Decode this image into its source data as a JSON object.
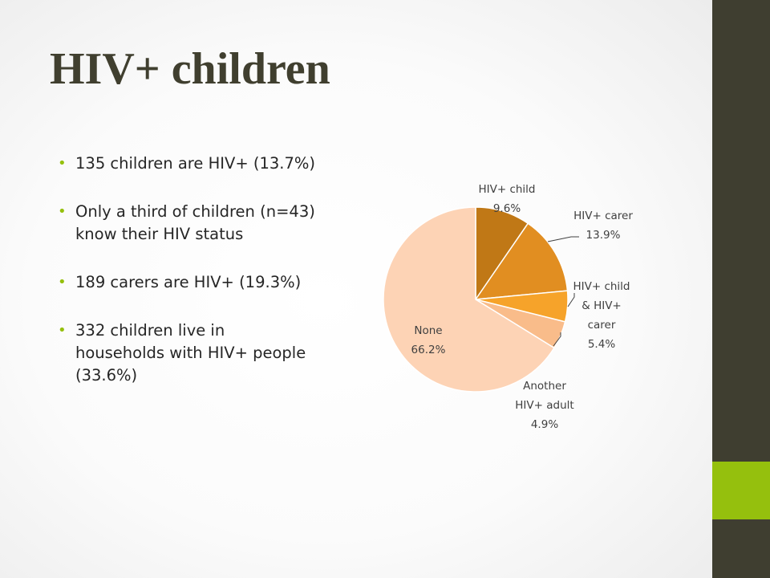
{
  "slide": {
    "title": "HIV+ children",
    "bullets": [
      {
        "lines": [
          "135 children are HIV+ (13.7%)"
        ]
      },
      {
        "lines": [
          "Only a third of children (n=43)",
          "know their HIV status"
        ]
      },
      {
        "lines": [
          "189 carers are HIV+ (19.3%)"
        ]
      },
      {
        "lines": [
          "332 children live in",
          "households with HIV+ people",
          "(33.6%)"
        ]
      }
    ],
    "colors": {
      "sidebar": "#3f3e30",
      "accent": "#95c00d",
      "title": "#403f2f"
    }
  },
  "chart_data": {
    "type": "pie",
    "start_angle_deg": 0,
    "direction": "clockwise",
    "slices": [
      {
        "label_lines": [
          "HIV+ child",
          "9.6%"
        ],
        "value": 9.6,
        "color": "#c07816"
      },
      {
        "label_lines": [
          "HIV+ carer",
          "13.9%"
        ],
        "value": 13.9,
        "color": "#e18e21"
      },
      {
        "label_lines": [
          "HIV+ child",
          "& HIV+",
          "carer",
          "5.4%"
        ],
        "value": 5.4,
        "color": "#f6a32a"
      },
      {
        "label_lines": [
          "Another",
          "HIV+ adult",
          "4.9%"
        ],
        "value": 4.9,
        "color": "#f9bc8a"
      },
      {
        "label_lines": [
          "None",
          "66.2%"
        ],
        "value": 66.2,
        "color": "#fdd3b5"
      }
    ]
  }
}
